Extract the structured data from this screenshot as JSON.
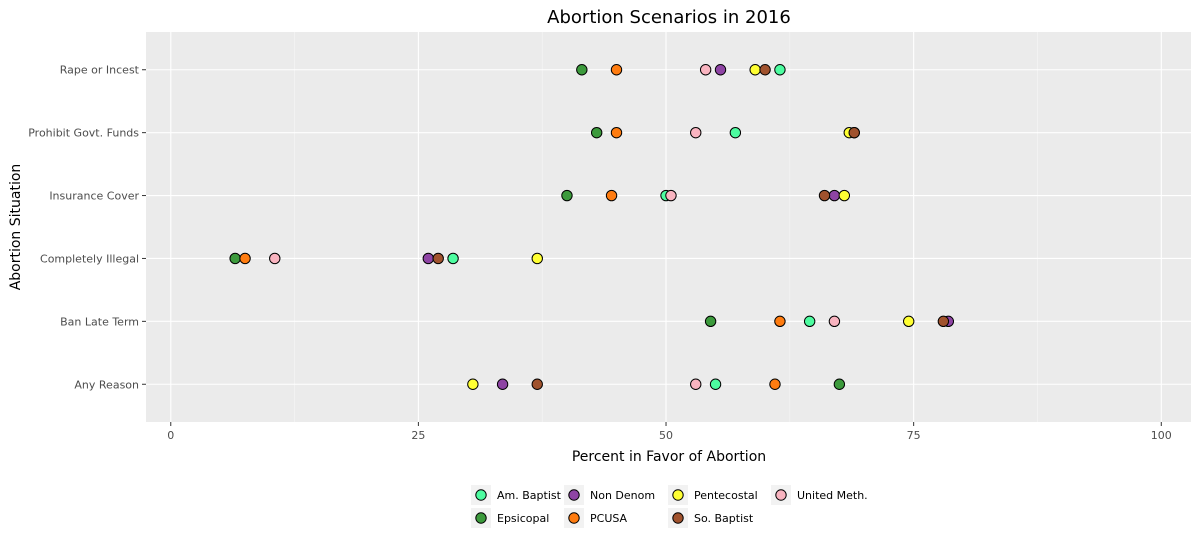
{
  "chart_data": {
    "type": "scatter",
    "title": "Abortion Scenarios in 2016",
    "xlabel": "Percent in Favor of Abortion",
    "ylabel": "Abortion Situation",
    "xlim": [
      -2.5,
      103
    ],
    "xticks": [
      0,
      25,
      50,
      75,
      100
    ],
    "grid": true,
    "legend_position": "bottom",
    "categories": [
      "Any Reason",
      "Ban Late Term",
      "Completely Illegal",
      "Insurance Cover",
      "Prohibit Govt. Funds",
      "Rape or Incest"
    ],
    "series": [
      {
        "name": "Am. Baptist",
        "color": "#4dfca0",
        "values": [
          55.0,
          64.5,
          28.5,
          50.0,
          57.0,
          61.5
        ]
      },
      {
        "name": "Epsicopal",
        "color": "#3c9a3c",
        "values": [
          67.5,
          54.5,
          6.5,
          40.0,
          43.0,
          41.5
        ]
      },
      {
        "name": "Non Denom",
        "color": "#8e44a4",
        "values": [
          33.5,
          78.5,
          26.0,
          67.0,
          69.0,
          55.5
        ]
      },
      {
        "name": "PCUSA",
        "color": "#ff7c10",
        "values": [
          61.0,
          61.5,
          7.5,
          44.5,
          45.0,
          45.0
        ]
      },
      {
        "name": "Pentecostal",
        "color": "#ffff33",
        "values": [
          30.5,
          74.5,
          37.0,
          68.0,
          68.5,
          59.0
        ]
      },
      {
        "name": "So. Baptist",
        "color": "#a0522d",
        "values": [
          37.0,
          78.0,
          27.0,
          66.0,
          69.0,
          60.0
        ]
      },
      {
        "name": "United Meth.",
        "color": "#f9b4c0",
        "values": [
          53.0,
          67.0,
          10.5,
          50.5,
          53.0,
          54.0
        ]
      }
    ],
    "legend_order": [
      "Am. Baptist",
      "Epsicopal",
      "Non Denom",
      "PCUSA",
      "Pentecostal",
      "So. Baptist",
      "United Meth."
    ]
  }
}
